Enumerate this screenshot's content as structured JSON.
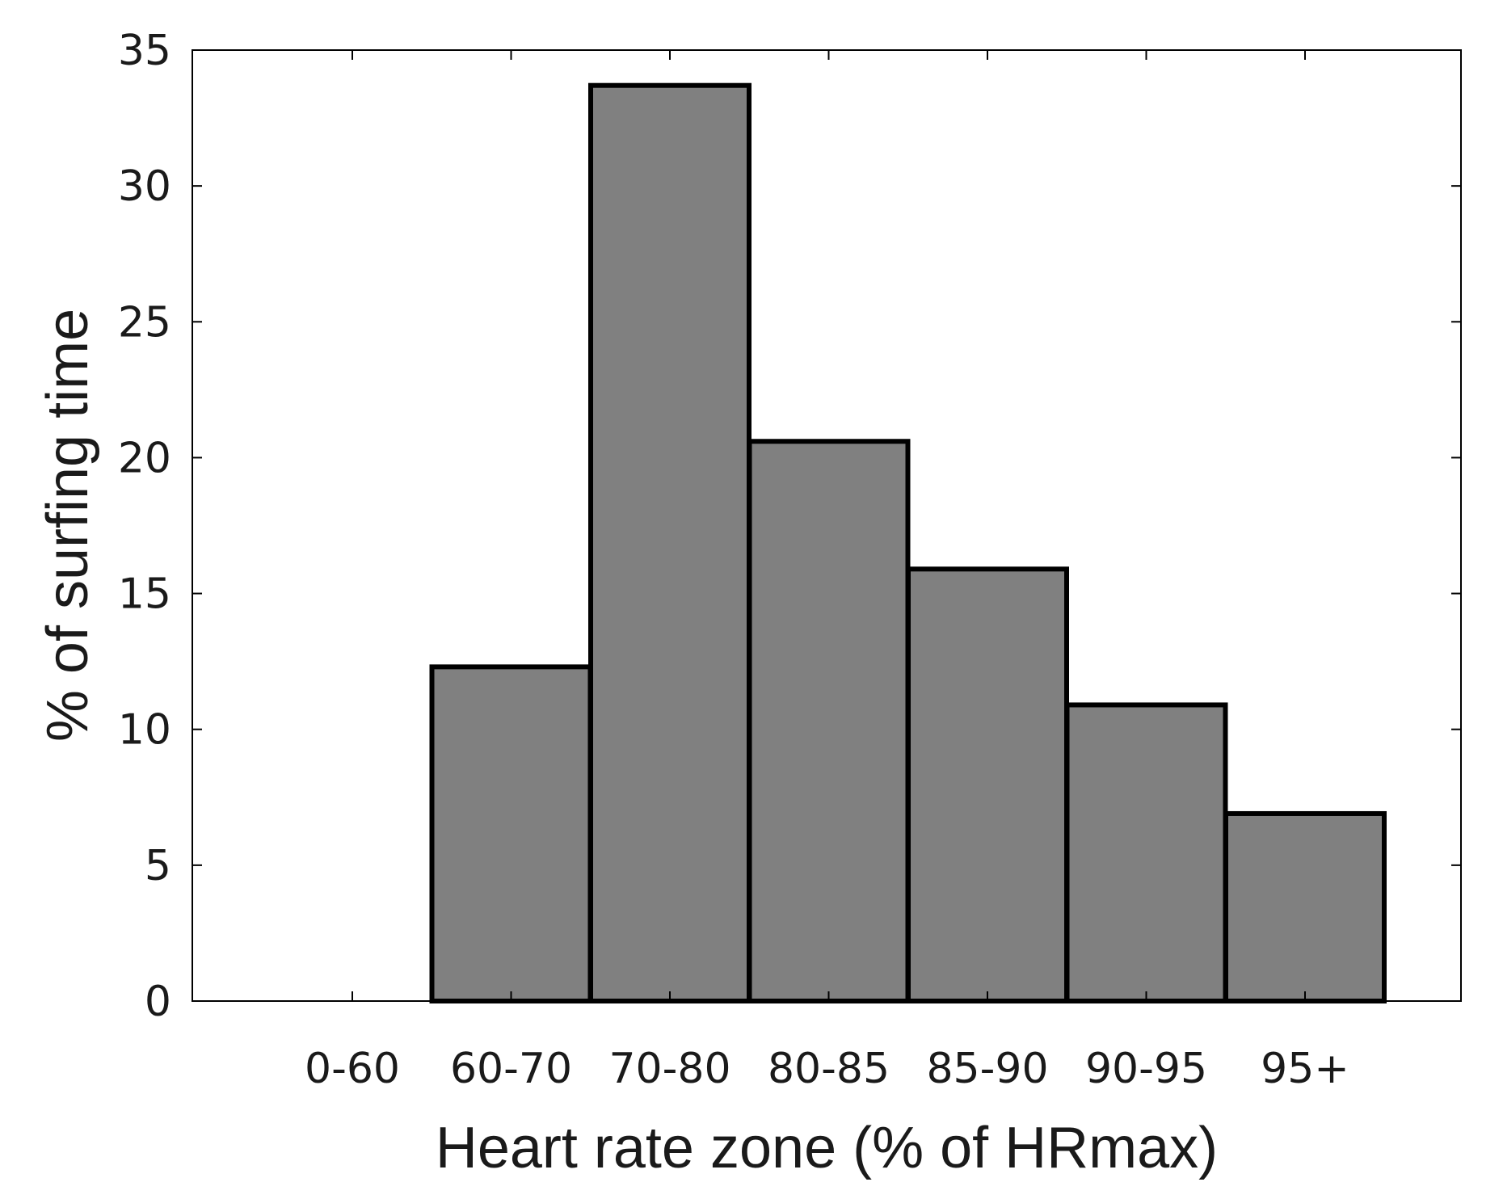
{
  "chart_data": {
    "type": "bar",
    "title": "",
    "xlabel": "Heart rate zone (% of HRmax)",
    "ylabel": "% of surfing time",
    "categories": [
      "0-60",
      "60-70",
      "70-80",
      "80-85",
      "85-90",
      "90-95",
      "95+"
    ],
    "values": [
      0,
      12.3,
      33.7,
      20.6,
      15.9,
      10.9,
      6.9
    ],
    "ylim": [
      0,
      35
    ],
    "yticks": [
      "0",
      "5",
      "10",
      "15",
      "20",
      "25",
      "30",
      "35"
    ],
    "grid": false,
    "colors": {
      "bar_fill": "#808080",
      "bar_edge": "#000000",
      "axis": "#000000"
    }
  }
}
